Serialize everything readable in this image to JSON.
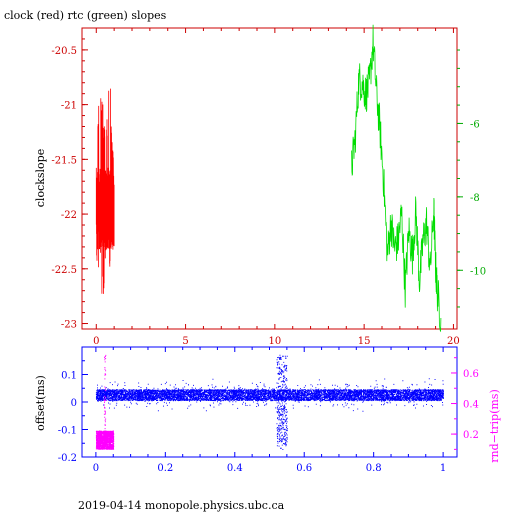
{
  "title": "clock (red) rtc (green) slopes",
  "footer": "2019-04-14 monopole.physics.ubc.ca",
  "colors": {
    "frame": "#cc0000",
    "clock": "#ff0000",
    "rtc": "#00dd00",
    "rtc_axis": "#00aa00",
    "offset": "#0000ff",
    "roundtrip": "#ff00ff"
  },
  "chart_data": [
    {
      "type": "line",
      "title": "clock (red) rtc (green) slopes",
      "ylabel": "clockslope",
      "xlabel": "",
      "xlim": [
        -0.8,
        20.2
      ],
      "xticks": [
        "0",
        "5",
        "10",
        "15",
        "20"
      ],
      "xtick_values": [
        0,
        5,
        10,
        15,
        20
      ],
      "ylim_left": [
        -23.05,
        -20.3
      ],
      "yticks_left": [
        "-20.5",
        "-21",
        "-21.5",
        "-22",
        "-22.5",
        "-23"
      ],
      "ytick_values_left": [
        -20.5,
        -21,
        -21.5,
        -22,
        -22.5,
        -23
      ],
      "ylim_right": [
        -3.4,
        -11.6
      ],
      "yticks_right": [
        "-6",
        "-8",
        "-10"
      ],
      "ytick_values_right": [
        -6,
        -8,
        -10
      ],
      "series": [
        {
          "name": "clock (red)",
          "axis": "left",
          "x_range": [
            0,
            1
          ],
          "approx_envelope": [
            [
              0.0,
              -21.4,
              -22.4
            ],
            [
              0.1,
              -21.0,
              -22.6
            ],
            [
              0.2,
              -20.75,
              -22.3
            ],
            [
              0.35,
              -20.9,
              -22.9
            ],
            [
              0.5,
              -21.3,
              -22.5
            ],
            [
              0.65,
              -21.0,
              -22.3
            ],
            [
              0.75,
              -20.45,
              -22.6
            ],
            [
              0.85,
              -21.2,
              -22.3
            ],
            [
              1.0,
              -21.6,
              -22.2
            ]
          ]
        },
        {
          "name": "rtc (green)",
          "axis": "right",
          "x_range": [
            14.3,
            19.3
          ],
          "approx_path": [
            [
              14.3,
              -7.2
            ],
            [
              14.5,
              -6.4
            ],
            [
              14.7,
              -4.8
            ],
            [
              14.9,
              -4.9
            ],
            [
              15.1,
              -5.2
            ],
            [
              15.3,
              -4.9
            ],
            [
              15.5,
              -3.8
            ],
            [
              15.7,
              -5.2
            ],
            [
              15.9,
              -6.2
            ],
            [
              16.1,
              -7.6
            ],
            [
              16.3,
              -9.6
            ],
            [
              16.5,
              -8.7
            ],
            [
              16.7,
              -9.4
            ],
            [
              16.9,
              -9.2
            ],
            [
              17.1,
              -8.4
            ],
            [
              17.3,
              -10.5
            ],
            [
              17.5,
              -8.9
            ],
            [
              17.7,
              -9.6
            ],
            [
              17.9,
              -8.4
            ],
            [
              18.1,
              -10.3
            ],
            [
              18.3,
              -9.2
            ],
            [
              18.5,
              -8.7
            ],
            [
              18.7,
              -10.0
            ],
            [
              18.9,
              -8.3
            ],
            [
              19.0,
              -9.9
            ],
            [
              19.1,
              -10.6
            ],
            [
              19.3,
              -11.3
            ]
          ]
        }
      ]
    },
    {
      "type": "scatter",
      "ylabel_left": "offset(ms)",
      "ylabel_right": "rnd−trip(ms)",
      "xlim": [
        -0.04,
        1.04
      ],
      "xticks": [
        "0",
        "0.2",
        "0.4",
        "0.6",
        "0.8",
        "1"
      ],
      "xtick_values": [
        0,
        0.2,
        0.4,
        0.6,
        0.8,
        1
      ],
      "ylim_left": [
        -0.2,
        0.2
      ],
      "yticks_left": [
        "0.1",
        "0",
        "-0.1",
        "-0.2"
      ],
      "ytick_values_left": [
        0.1,
        0,
        -0.1,
        -0.2
      ],
      "ylim_right": [
        0.05,
        0.77
      ],
      "yticks_right": [
        "0.6",
        "0.4",
        "0.2"
      ],
      "ytick_values_right": [
        0.6,
        0.4,
        0.2
      ],
      "series": [
        {
          "name": "offset",
          "axis": "left",
          "x_range": [
            0,
            1
          ],
          "center": 0.025,
          "band": [
            0.005,
            0.045
          ],
          "spike": {
            "x": [
              0.52,
              0.55
            ],
            "min": -0.19,
            "max": 0.17
          }
        },
        {
          "name": "rnd-trip",
          "axis": "right",
          "x_range": [
            0,
            0.05
          ],
          "band": [
            0.1,
            0.22
          ],
          "spike": {
            "x": 0.025,
            "max": 0.72
          }
        }
      ]
    }
  ]
}
